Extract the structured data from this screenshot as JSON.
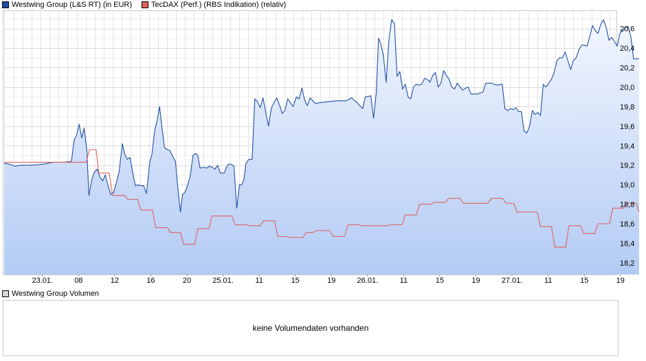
{
  "legend": {
    "main": [
      {
        "label": "Westwing Group (L&S RT) (in EUR)",
        "color": "#1f4fa5"
      },
      {
        "label": "TecDAX (Perf.) (RBS Indikation) (relativ)",
        "color": "#e06060"
      }
    ],
    "volume": {
      "label": "Westwing Group Volumen",
      "color": "#d8d8d8"
    }
  },
  "volume_panel": {
    "message": "keine Volumendaten vorhanden"
  },
  "chart_data": {
    "type": "area",
    "title": "",
    "xlabel": "",
    "ylabel": "",
    "ylim": [
      18.08,
      20.78
    ],
    "y_ticks": [
      18.2,
      18.4,
      18.6,
      18.8,
      19.0,
      19.2,
      19.4,
      19.6,
      19.8,
      20.0,
      20.2,
      20.4,
      20.6
    ],
    "y_tick_labels": [
      "18,2",
      "18,4",
      "18,6",
      "18,8",
      "19,0",
      "19,2",
      "19,4",
      "19,6",
      "19,8",
      "20,0",
      "20,2",
      "20,4",
      "20,6"
    ],
    "y_axis_position": "right",
    "x_range": [
      0,
      112
    ],
    "x_ticks": [
      {
        "x": 7,
        "label": "23.01."
      },
      {
        "x": 13.6,
        "label": "08"
      },
      {
        "x": 20.2,
        "label": "12"
      },
      {
        "x": 26.8,
        "label": "16"
      },
      {
        "x": 33.4,
        "label": "20"
      },
      {
        "x": 40,
        "label": "25.01."
      },
      {
        "x": 46.6,
        "label": "11"
      },
      {
        "x": 53.2,
        "label": "15"
      },
      {
        "x": 59.8,
        "label": "19"
      },
      {
        "x": 66.4,
        "label": "26.01."
      },
      {
        "x": 73,
        "label": "11"
      },
      {
        "x": 79.6,
        "label": "15"
      },
      {
        "x": 86.2,
        "label": "19"
      },
      {
        "x": 92.8,
        "label": "27.01."
      },
      {
        "x": 99.4,
        "label": "11"
      },
      {
        "x": 106,
        "label": "15"
      },
      {
        "x": 112.6,
        "label": "19"
      }
    ],
    "grid": true,
    "legend_position": "top-left",
    "series": [
      {
        "name": "Westwing Group (L&S RT) (in EUR)",
        "type": "area",
        "color": "#1f4fa5",
        "points": [
          [
            0,
            19.22
          ],
          [
            1,
            19.21
          ],
          [
            2,
            19.19
          ],
          [
            3,
            19.2
          ],
          [
            5,
            19.2
          ],
          [
            7,
            19.21
          ],
          [
            9,
            19.23
          ],
          [
            11,
            19.23
          ],
          [
            12.3,
            19.24
          ],
          [
            12.8,
            19.46
          ],
          [
            13.2,
            19.5
          ],
          [
            13.7,
            19.62
          ],
          [
            14.2,
            19.48
          ],
          [
            14.6,
            19.58
          ],
          [
            15.1,
            19.36
          ],
          [
            15.5,
            18.89
          ],
          [
            16,
            19.05
          ],
          [
            16.5,
            19.13
          ],
          [
            17,
            19.16
          ],
          [
            17.5,
            19.08
          ],
          [
            18,
            19.04
          ],
          [
            18.5,
            19.1
          ],
          [
            19,
            18.99
          ],
          [
            19.5,
            18.9
          ],
          [
            20,
            18.92
          ],
          [
            20.5,
            19.02
          ],
          [
            21,
            19.13
          ],
          [
            21.6,
            19.42
          ],
          [
            22,
            19.32
          ],
          [
            22.5,
            19.26
          ],
          [
            23,
            19.28
          ],
          [
            23.5,
            19.12
          ],
          [
            24,
            18.99
          ],
          [
            24.5,
            19.0
          ],
          [
            25,
            18.99
          ],
          [
            25.5,
            18.99
          ],
          [
            26,
            18.91
          ],
          [
            26.6,
            19.23
          ],
          [
            27,
            19.31
          ],
          [
            27.5,
            19.55
          ],
          [
            28,
            19.67
          ],
          [
            28.4,
            19.8
          ],
          [
            28.8,
            19.6
          ],
          [
            29.3,
            19.38
          ],
          [
            29.8,
            19.36
          ],
          [
            30.3,
            19.35
          ],
          [
            30.8,
            19.29
          ],
          [
            31.3,
            19.24
          ],
          [
            31.8,
            18.93
          ],
          [
            32.2,
            18.72
          ],
          [
            32.6,
            18.9
          ],
          [
            33,
            18.92
          ],
          [
            33.4,
            18.97
          ],
          [
            34,
            19.09
          ],
          [
            34.5,
            19.3
          ],
          [
            35,
            19.32
          ],
          [
            35.4,
            19.3
          ],
          [
            35.8,
            19.17
          ],
          [
            36.5,
            19.18
          ],
          [
            37,
            19.17
          ],
          [
            37.5,
            19.19
          ],
          [
            38,
            19.18
          ],
          [
            38.5,
            19.16
          ],
          [
            39,
            19.2
          ],
          [
            39.5,
            19.12
          ],
          [
            40.2,
            19.12
          ],
          [
            40.6,
            19.18
          ],
          [
            41,
            19.21
          ],
          [
            41.5,
            19.21
          ],
          [
            42,
            19.19
          ],
          [
            42.5,
            18.76
          ],
          [
            43,
            19.0
          ],
          [
            43.4,
            19.0
          ],
          [
            43.8,
            19.05
          ],
          [
            44.2,
            19.22
          ],
          [
            44.7,
            19.26
          ],
          [
            45.3,
            19.26
          ],
          [
            45.8,
            19.88
          ],
          [
            46.3,
            19.85
          ],
          [
            46.8,
            19.79
          ],
          [
            47.3,
            19.89
          ],
          [
            47.8,
            19.74
          ],
          [
            48.3,
            19.6
          ],
          [
            48.8,
            19.78
          ],
          [
            49.3,
            19.84
          ],
          [
            49.8,
            19.89
          ],
          [
            50.3,
            19.82
          ],
          [
            50.8,
            19.73
          ],
          [
            51.3,
            19.76
          ],
          [
            51.8,
            19.88
          ],
          [
            52.3,
            19.84
          ],
          [
            52.8,
            19.8
          ],
          [
            53.4,
            19.9
          ],
          [
            53.9,
            19.88
          ],
          [
            54.4,
            19.99
          ],
          [
            54.9,
            19.87
          ],
          [
            55.4,
            19.81
          ],
          [
            55.9,
            19.89
          ],
          [
            56.4,
            19.86
          ],
          [
            56.9,
            19.83
          ],
          [
            57.5,
            19.84
          ],
          [
            59,
            19.85
          ],
          [
            61,
            19.86
          ],
          [
            62.5,
            19.86
          ],
          [
            63.5,
            19.89
          ],
          [
            64.5,
            19.84
          ],
          [
            65.5,
            19.78
          ],
          [
            66,
            19.9
          ],
          [
            67,
            19.91
          ],
          [
            67.5,
            19.68
          ],
          [
            68,
            19.95
          ],
          [
            68.4,
            20.5
          ],
          [
            68.8,
            20.45
          ],
          [
            69.3,
            20.32
          ],
          [
            69.8,
            20.05
          ],
          [
            70.3,
            20.48
          ],
          [
            70.8,
            20.69
          ],
          [
            71.3,
            20.65
          ],
          [
            71.8,
            20.11
          ],
          [
            72.3,
            20.16
          ],
          [
            72.8,
            19.98
          ],
          [
            73.3,
            20.03
          ],
          [
            73.8,
            19.9
          ],
          [
            74.3,
            19.88
          ],
          [
            74.8,
            20.0
          ],
          [
            75.3,
            20.03
          ],
          [
            75.8,
            20.02
          ],
          [
            76.3,
            20.03
          ],
          [
            76.8,
            20.09
          ],
          [
            77.3,
            20.08
          ],
          [
            77.8,
            20.05
          ],
          [
            78.3,
            20.12
          ],
          [
            78.8,
            20.15
          ],
          [
            79.3,
            20.0
          ],
          [
            79.8,
            20.04
          ],
          [
            80.3,
            20.17
          ],
          [
            80.8,
            20.12
          ],
          [
            81.3,
            20.08
          ],
          [
            81.8,
            20.0
          ],
          [
            82.3,
            19.98
          ],
          [
            82.8,
            20.04
          ],
          [
            83.3,
            20.0
          ],
          [
            83.8,
            19.97
          ],
          [
            84.3,
            19.99
          ],
          [
            84.8,
            20.0
          ],
          [
            85.3,
            19.93
          ],
          [
            86.5,
            19.93
          ],
          [
            87.5,
            19.95
          ],
          [
            88,
            20.04
          ],
          [
            89,
            20.04
          ],
          [
            90,
            20.02
          ],
          [
            91,
            20.03
          ],
          [
            91.5,
            19.78
          ],
          [
            92,
            19.76
          ],
          [
            92.5,
            19.78
          ],
          [
            93,
            19.77
          ],
          [
            93.5,
            19.79
          ],
          [
            94,
            19.75
          ],
          [
            94.5,
            19.75
          ],
          [
            95,
            19.55
          ],
          [
            95.5,
            19.53
          ],
          [
            96,
            19.6
          ],
          [
            96.5,
            19.76
          ],
          [
            97,
            19.72
          ],
          [
            97.5,
            19.74
          ],
          [
            98,
            19.71
          ],
          [
            98.5,
            20.03
          ],
          [
            99,
            20.0
          ],
          [
            99.5,
            20.04
          ],
          [
            100,
            20.08
          ],
          [
            100.5,
            20.15
          ],
          [
            101,
            20.27
          ],
          [
            101.5,
            20.3
          ],
          [
            102,
            20.3
          ],
          [
            102.5,
            20.36
          ],
          [
            103,
            20.27
          ],
          [
            103.5,
            20.18
          ],
          [
            104,
            20.27
          ],
          [
            104.5,
            20.3
          ],
          [
            105,
            20.38
          ],
          [
            105.5,
            20.43
          ],
          [
            106,
            20.43
          ],
          [
            106.5,
            20.42
          ],
          [
            107,
            20.52
          ],
          [
            107.5,
            20.63
          ],
          [
            108,
            20.58
          ],
          [
            108.5,
            20.55
          ],
          [
            109,
            20.64
          ],
          [
            109.5,
            20.69
          ],
          [
            110,
            20.61
          ],
          [
            110.5,
            20.48
          ],
          [
            111,
            20.51
          ],
          [
            111.5,
            20.47
          ],
          [
            112,
            20.42
          ],
          [
            112.5,
            20.55
          ],
          [
            113,
            20.58
          ],
          [
            113.5,
            20.61
          ],
          [
            114,
            20.62
          ],
          [
            114.5,
            20.52
          ],
          [
            115,
            20.29
          ],
          [
            116,
            20.29
          ]
        ]
      },
      {
        "name": "TecDAX (Perf.) (RBS Indikation) (relativ)",
        "type": "step",
        "color": "#e06060",
        "points": [
          [
            0,
            19.23
          ],
          [
            15,
            19.23
          ],
          [
            15.6,
            19.36
          ],
          [
            16.8,
            19.36
          ],
          [
            17.3,
            19.12
          ],
          [
            19.2,
            19.12
          ],
          [
            19.8,
            18.89
          ],
          [
            22,
            18.89
          ],
          [
            22.6,
            18.85
          ],
          [
            24.4,
            18.85
          ],
          [
            25,
            18.74
          ],
          [
            27.1,
            18.74
          ],
          [
            27.7,
            18.56
          ],
          [
            29.8,
            18.56
          ],
          [
            30.4,
            18.51
          ],
          [
            32.2,
            18.51
          ],
          [
            32.8,
            18.39
          ],
          [
            34.8,
            18.39
          ],
          [
            35.4,
            18.55
          ],
          [
            37.4,
            18.55
          ],
          [
            38,
            18.68
          ],
          [
            41.6,
            18.68
          ],
          [
            42.2,
            18.59
          ],
          [
            44.3,
            18.59
          ],
          [
            44.9,
            18.58
          ],
          [
            46.8,
            18.58
          ],
          [
            47.4,
            18.63
          ],
          [
            49.4,
            18.63
          ],
          [
            50,
            18.47
          ],
          [
            51.5,
            18.47
          ],
          [
            52.2,
            18.46
          ],
          [
            54.6,
            18.46
          ],
          [
            55.2,
            18.51
          ],
          [
            56.4,
            18.51
          ],
          [
            57,
            18.53
          ],
          [
            59.5,
            18.53
          ],
          [
            60.1,
            18.47
          ],
          [
            62.2,
            18.47
          ],
          [
            62.8,
            18.59
          ],
          [
            64.8,
            18.59
          ],
          [
            65.4,
            18.58
          ],
          [
            70,
            18.58
          ],
          [
            70.6,
            18.59
          ],
          [
            72.7,
            18.59
          ],
          [
            73.3,
            18.69
          ],
          [
            75.3,
            18.69
          ],
          [
            75.9,
            18.8
          ],
          [
            78,
            18.8
          ],
          [
            78.6,
            18.82
          ],
          [
            80.6,
            18.82
          ],
          [
            81.2,
            18.86
          ],
          [
            83.3,
            18.86
          ],
          [
            83.9,
            18.81
          ],
          [
            88.4,
            18.81
          ],
          [
            89,
            18.86
          ],
          [
            91.1,
            18.86
          ],
          [
            91.7,
            18.81
          ],
          [
            93.1,
            18.81
          ],
          [
            93.7,
            18.72
          ],
          [
            97.4,
            18.72
          ],
          [
            98,
            18.57
          ],
          [
            100,
            18.57
          ],
          [
            100.6,
            18.36
          ],
          [
            102.6,
            18.36
          ],
          [
            103.2,
            18.58
          ],
          [
            105.3,
            18.58
          ],
          [
            105.9,
            18.5
          ],
          [
            107.9,
            18.5
          ],
          [
            108.5,
            18.6
          ],
          [
            110.6,
            18.6
          ],
          [
            111.2,
            18.76
          ],
          [
            113.2,
            18.76
          ],
          [
            113.8,
            18.81
          ],
          [
            115.5,
            18.81
          ],
          [
            116,
            18.72
          ]
        ]
      }
    ]
  }
}
